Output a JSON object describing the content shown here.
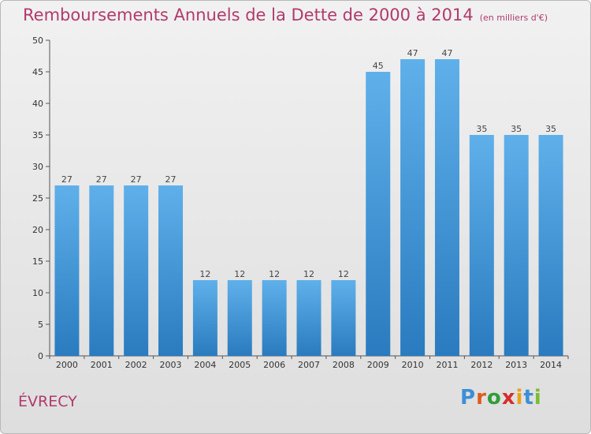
{
  "title": "Remboursements Annuels de la Dette de 2000 à 2014",
  "subtitle": "(en milliers d'€)",
  "city": "ÉVRECY",
  "logo": {
    "letters": [
      "P",
      "r",
      "o",
      "x",
      "i",
      "t",
      "i"
    ],
    "colors": [
      "#3c8fd6",
      "#e05a1c",
      "#2f9d3a",
      "#d62d2d",
      "#e8a21a",
      "#3c8fd6",
      "#7bbd2f"
    ]
  },
  "colors": {
    "bar_top": "#5fb0ea",
    "bar_bottom": "#2a7bbf",
    "title": "#b13a6a"
  },
  "chart_data": {
    "type": "bar",
    "categories": [
      "2000",
      "2001",
      "2002",
      "2003",
      "2004",
      "2005",
      "2006",
      "2007",
      "2008",
      "2009",
      "2010",
      "2011",
      "2012",
      "2013",
      "2014"
    ],
    "values": [
      27,
      27,
      27,
      27,
      12,
      12,
      12,
      12,
      12,
      45,
      47,
      47,
      35,
      35,
      35
    ],
    "title": "Remboursements Annuels de la Dette de 2000 à 2014",
    "subtitle": "(en milliers d'€)",
    "ylim": [
      0,
      50
    ],
    "yticks": [
      0,
      5,
      10,
      15,
      20,
      25,
      30,
      35,
      40,
      45,
      50
    ],
    "grid": false,
    "data_labels": true
  }
}
